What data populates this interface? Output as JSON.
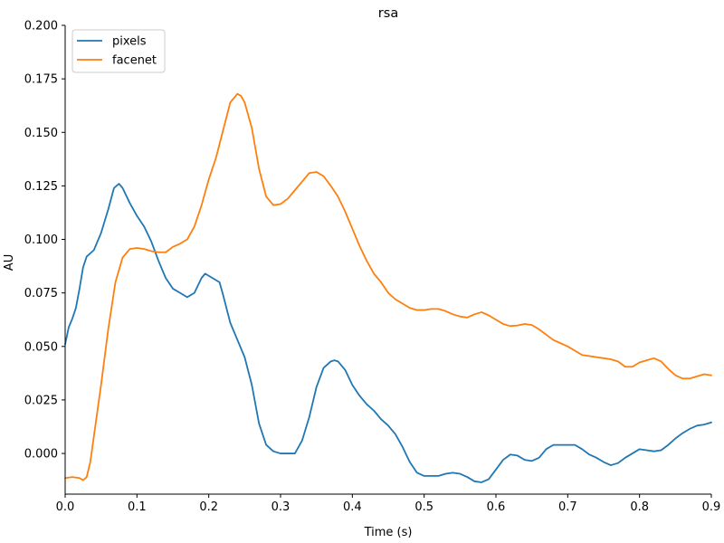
{
  "chart_data": {
    "type": "line",
    "title": "rsa",
    "xlabel": "Time (s)",
    "ylabel": "AU",
    "xlim": [
      0.0,
      0.9
    ],
    "ylim": [
      -0.019,
      0.2
    ],
    "xticks": [
      "0.0",
      "0.1",
      "0.2",
      "0.3",
      "0.4",
      "0.5",
      "0.6",
      "0.7",
      "0.8",
      "0.9"
    ],
    "yticks": [
      "0.000",
      "0.025",
      "0.050",
      "0.075",
      "0.100",
      "0.125",
      "0.150",
      "0.175",
      "0.200"
    ],
    "grid": false,
    "legend_position": "top-left",
    "series": [
      {
        "name": "pixels",
        "color": "#1f77b4",
        "points": [
          [
            0.0,
            0.051
          ],
          [
            0.005,
            0.059
          ],
          [
            0.01,
            0.063
          ],
          [
            0.015,
            0.068
          ],
          [
            0.02,
            0.077
          ],
          [
            0.025,
            0.087
          ],
          [
            0.03,
            0.092
          ],
          [
            0.04,
            0.095
          ],
          [
            0.05,
            0.103
          ],
          [
            0.06,
            0.114
          ],
          [
            0.068,
            0.124
          ],
          [
            0.075,
            0.126
          ],
          [
            0.08,
            0.124
          ],
          [
            0.09,
            0.117
          ],
          [
            0.1,
            0.111
          ],
          [
            0.11,
            0.106
          ],
          [
            0.12,
            0.099
          ],
          [
            0.13,
            0.09
          ],
          [
            0.14,
            0.082
          ],
          [
            0.15,
            0.077
          ],
          [
            0.16,
            0.075
          ],
          [
            0.17,
            0.073
          ],
          [
            0.18,
            0.075
          ],
          [
            0.19,
            0.082
          ],
          [
            0.195,
            0.084
          ],
          [
            0.2,
            0.083
          ],
          [
            0.21,
            0.081
          ],
          [
            0.215,
            0.08
          ],
          [
            0.22,
            0.074
          ],
          [
            0.23,
            0.061
          ],
          [
            0.24,
            0.053
          ],
          [
            0.25,
            0.045
          ],
          [
            0.26,
            0.032
          ],
          [
            0.27,
            0.014
          ],
          [
            0.28,
            0.004
          ],
          [
            0.29,
            0.001
          ],
          [
            0.3,
            0.0
          ],
          [
            0.31,
            0.0
          ],
          [
            0.32,
            0.0
          ],
          [
            0.33,
            0.006
          ],
          [
            0.34,
            0.017
          ],
          [
            0.35,
            0.031
          ],
          [
            0.36,
            0.04
          ],
          [
            0.37,
            0.043
          ],
          [
            0.375,
            0.0435
          ],
          [
            0.38,
            0.043
          ],
          [
            0.39,
            0.039
          ],
          [
            0.4,
            0.032
          ],
          [
            0.41,
            0.027
          ],
          [
            0.42,
            0.023
          ],
          [
            0.43,
            0.02
          ],
          [
            0.44,
            0.016
          ],
          [
            0.45,
            0.013
          ],
          [
            0.46,
            0.009
          ],
          [
            0.47,
            0.003
          ],
          [
            0.48,
            -0.004
          ],
          [
            0.49,
            -0.009
          ],
          [
            0.5,
            -0.0105
          ],
          [
            0.51,
            -0.0105
          ],
          [
            0.52,
            -0.0105
          ],
          [
            0.53,
            -0.0095
          ],
          [
            0.54,
            -0.009
          ],
          [
            0.55,
            -0.0095
          ],
          [
            0.56,
            -0.011
          ],
          [
            0.57,
            -0.013
          ],
          [
            0.58,
            -0.0135
          ],
          [
            0.59,
            -0.012
          ],
          [
            0.6,
            -0.0075
          ],
          [
            0.61,
            -0.003
          ],
          [
            0.62,
            -0.0005
          ],
          [
            0.63,
            -0.001
          ],
          [
            0.64,
            -0.003
          ],
          [
            0.65,
            -0.0035
          ],
          [
            0.66,
            -0.002
          ],
          [
            0.67,
            0.002
          ],
          [
            0.68,
            0.004
          ],
          [
            0.69,
            0.004
          ],
          [
            0.7,
            0.004
          ],
          [
            0.71,
            0.004
          ],
          [
            0.72,
            0.002
          ],
          [
            0.73,
            -0.0005
          ],
          [
            0.74,
            -0.002
          ],
          [
            0.75,
            -0.004
          ],
          [
            0.76,
            -0.0055
          ],
          [
            0.77,
            -0.0045
          ],
          [
            0.78,
            -0.002
          ],
          [
            0.79,
            0.0
          ],
          [
            0.8,
            0.002
          ],
          [
            0.81,
            0.0015
          ],
          [
            0.82,
            0.001
          ],
          [
            0.83,
            0.0015
          ],
          [
            0.84,
            0.004
          ],
          [
            0.85,
            0.007
          ],
          [
            0.86,
            0.0095
          ],
          [
            0.87,
            0.0115
          ],
          [
            0.88,
            0.013
          ],
          [
            0.89,
            0.0135
          ],
          [
            0.9,
            0.0145
          ]
        ]
      },
      {
        "name": "facenet",
        "color": "#ff7f0e",
        "points": [
          [
            0.0,
            -0.0115
          ],
          [
            0.01,
            -0.011
          ],
          [
            0.02,
            -0.0115
          ],
          [
            0.025,
            -0.0125
          ],
          [
            0.03,
            -0.011
          ],
          [
            0.035,
            -0.004
          ],
          [
            0.04,
            0.008
          ],
          [
            0.05,
            0.032
          ],
          [
            0.06,
            0.058
          ],
          [
            0.07,
            0.08
          ],
          [
            0.08,
            0.0915
          ],
          [
            0.09,
            0.0955
          ],
          [
            0.1,
            0.096
          ],
          [
            0.11,
            0.0955
          ],
          [
            0.12,
            0.0945
          ],
          [
            0.13,
            0.094
          ],
          [
            0.14,
            0.094
          ],
          [
            0.15,
            0.0965
          ],
          [
            0.16,
            0.098
          ],
          [
            0.17,
            0.1
          ],
          [
            0.18,
            0.106
          ],
          [
            0.19,
            0.116
          ],
          [
            0.2,
            0.128
          ],
          [
            0.21,
            0.138
          ],
          [
            0.22,
            0.151
          ],
          [
            0.23,
            0.164
          ],
          [
            0.24,
            0.168
          ],
          [
            0.245,
            0.167
          ],
          [
            0.25,
            0.164
          ],
          [
            0.26,
            0.152
          ],
          [
            0.27,
            0.133
          ],
          [
            0.28,
            0.12
          ],
          [
            0.29,
            0.116
          ],
          [
            0.3,
            0.1165
          ],
          [
            0.31,
            0.119
          ],
          [
            0.32,
            0.123
          ],
          [
            0.33,
            0.127
          ],
          [
            0.34,
            0.131
          ],
          [
            0.35,
            0.1315
          ],
          [
            0.36,
            0.1295
          ],
          [
            0.37,
            0.125
          ],
          [
            0.38,
            0.12
          ],
          [
            0.39,
            0.113
          ],
          [
            0.4,
            0.105
          ],
          [
            0.41,
            0.097
          ],
          [
            0.42,
            0.09
          ],
          [
            0.43,
            0.084
          ],
          [
            0.44,
            0.08
          ],
          [
            0.45,
            0.075
          ],
          [
            0.46,
            0.072
          ],
          [
            0.47,
            0.07
          ],
          [
            0.48,
            0.068
          ],
          [
            0.49,
            0.067
          ],
          [
            0.5,
            0.067
          ],
          [
            0.51,
            0.0675
          ],
          [
            0.52,
            0.0675
          ],
          [
            0.53,
            0.0665
          ],
          [
            0.54,
            0.065
          ],
          [
            0.55,
            0.064
          ],
          [
            0.56,
            0.0635
          ],
          [
            0.57,
            0.065
          ],
          [
            0.58,
            0.066
          ],
          [
            0.59,
            0.0645
          ],
          [
            0.6,
            0.0625
          ],
          [
            0.61,
            0.0605
          ],
          [
            0.62,
            0.0595
          ],
          [
            0.63,
            0.0598
          ],
          [
            0.64,
            0.0605
          ],
          [
            0.65,
            0.06
          ],
          [
            0.66,
            0.058
          ],
          [
            0.67,
            0.0555
          ],
          [
            0.68,
            0.053
          ],
          [
            0.69,
            0.0515
          ],
          [
            0.7,
            0.05
          ],
          [
            0.71,
            0.048
          ],
          [
            0.72,
            0.046
          ],
          [
            0.73,
            0.0455
          ],
          [
            0.74,
            0.045
          ],
          [
            0.75,
            0.0445
          ],
          [
            0.76,
            0.044
          ],
          [
            0.77,
            0.043
          ],
          [
            0.78,
            0.0405
          ],
          [
            0.79,
            0.0405
          ],
          [
            0.8,
            0.0425
          ],
          [
            0.81,
            0.0435
          ],
          [
            0.82,
            0.0445
          ],
          [
            0.83,
            0.043
          ],
          [
            0.84,
            0.0395
          ],
          [
            0.85,
            0.0365
          ],
          [
            0.86,
            0.035
          ],
          [
            0.87,
            0.035
          ],
          [
            0.88,
            0.036
          ],
          [
            0.89,
            0.037
          ],
          [
            0.9,
            0.0365
          ]
        ]
      }
    ]
  }
}
